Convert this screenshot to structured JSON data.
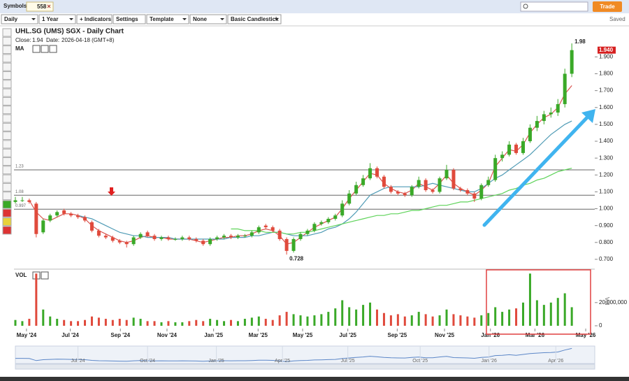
{
  "toolbar": {
    "symbols_label": "Symbols:",
    "symbol": "558",
    "controls": [
      "Daily",
      "1 Year",
      "+ Indicators",
      "Settings",
      "Template",
      "None",
      "Basic Candlestick"
    ],
    "trade": "Trade",
    "saved": "Saved"
  },
  "chart_data": {
    "type": "candlestick",
    "title": "UHL.SG (UMS) SGX - Daily Chart",
    "close_label": "Close:",
    "close": 1.94,
    "date_label": "Date:",
    "date": "2026-04-18 (GMT+8)",
    "indicator_label": "MA",
    "volume_label": "VOL",
    "volume_axis_label": "Vol",
    "xlim": [
      -0.5,
      83.3
    ],
    "xticks": [
      {
        "value": 1.6,
        "label": "May '24"
      },
      {
        "value": 7.9,
        "label": "Jul '24"
      },
      {
        "value": 15.1,
        "label": "Sep '24"
      },
      {
        "value": 21.8,
        "label": "Nov '24"
      },
      {
        "value": 28.5,
        "label": "Jan '25"
      },
      {
        "value": 34.9,
        "label": "Mar '25"
      },
      {
        "value": 41.3,
        "label": "May '25"
      },
      {
        "value": 47.8,
        "label": "Jul '25"
      },
      {
        "value": 54.9,
        "label": "Sep '25"
      },
      {
        "value": 61.7,
        "label": "Nov '25"
      },
      {
        "value": 68.3,
        "label": "Jan '26"
      },
      {
        "value": 74.7,
        "label": "Mar '26"
      },
      {
        "value": 82.0,
        "label": "May '26"
      }
    ],
    "navigator_ticks": [
      {
        "value": 9.0,
        "label": "Jul '24"
      },
      {
        "value": 19.0,
        "label": "Oct '24"
      },
      {
        "value": 28.9,
        "label": "Jan '25"
      },
      {
        "value": 38.4,
        "label": "Apr '25"
      },
      {
        "value": 47.8,
        "label": "Jul '25"
      },
      {
        "value": 58.2,
        "label": "Oct '25"
      },
      {
        "value": 68.1,
        "label": "Jan '26"
      },
      {
        "value": 77.7,
        "label": "Apr '26"
      }
    ],
    "ylim": [
      0.65,
      2.03
    ],
    "yticks": [
      {
        "value": 0.7,
        "label": "0.700"
      },
      {
        "value": 0.8,
        "label": "0.800"
      },
      {
        "value": 0.9,
        "label": "0.900"
      },
      {
        "value": 1.0,
        "label": "1.000"
      },
      {
        "value": 1.1,
        "label": "1.100"
      },
      {
        "value": 1.2,
        "label": "1.200"
      },
      {
        "value": 1.3,
        "label": "1.300"
      },
      {
        "value": 1.4,
        "label": "1.400"
      },
      {
        "value": 1.5,
        "label": "1.500"
      },
      {
        "value": 1.6,
        "label": "1.600"
      },
      {
        "value": 1.7,
        "label": "1.700"
      },
      {
        "value": 1.8,
        "label": "1.800"
      },
      {
        "value": 1.9,
        "label": "1.900"
      }
    ],
    "hlines": [
      {
        "value": 1.23,
        "label": "1.23"
      },
      {
        "value": 1.08,
        "label": "1.08"
      },
      {
        "value": 0.997,
        "label": "0.997"
      }
    ],
    "last_price_label": "1.940",
    "high_label": "1.98",
    "low_label": "0.728",
    "up_color": "#3aa928",
    "down_color": "#e04a3c",
    "open": [
      1.04,
      1.05,
      1.05,
      1.03,
      0.86,
      0.93,
      0.96,
      0.99,
      0.97,
      0.96,
      0.95,
      0.92,
      0.87,
      0.84,
      0.83,
      0.81,
      0.8,
      0.79,
      0.83,
      0.86,
      0.84,
      0.82,
      0.83,
      0.82,
      0.82,
      0.83,
      0.82,
      0.81,
      0.79,
      0.82,
      0.83,
      0.84,
      0.83,
      0.84,
      0.84,
      0.86,
      0.9,
      0.89,
      0.87,
      0.82,
      0.75,
      0.82,
      0.85,
      0.87,
      0.91,
      0.92,
      0.94,
      0.96,
      1.03,
      1.09,
      1.14,
      1.18,
      1.24,
      1.19,
      1.13,
      1.1,
      1.09,
      1.08,
      1.13,
      1.17,
      1.11,
      1.1,
      1.18,
      1.23,
      1.12,
      1.11,
      1.09,
      1.06,
      1.14,
      1.17,
      1.3,
      1.32,
      1.38,
      1.33,
      1.4,
      1.48,
      1.52,
      1.56,
      1.57,
      1.62,
      1.8
    ],
    "high": [
      1.07,
      1.07,
      1.06,
      1.04,
      0.94,
      0.97,
      0.99,
      1.0,
      0.98,
      0.97,
      0.96,
      0.93,
      0.88,
      0.85,
      0.84,
      0.82,
      0.81,
      0.84,
      0.86,
      0.87,
      0.85,
      0.84,
      0.84,
      0.83,
      0.84,
      0.84,
      0.83,
      0.82,
      0.83,
      0.84,
      0.85,
      0.85,
      0.85,
      0.85,
      0.87,
      0.9,
      0.91,
      0.9,
      0.88,
      0.83,
      0.83,
      0.86,
      0.88,
      0.92,
      0.93,
      0.95,
      0.97,
      1.05,
      1.11,
      1.16,
      1.2,
      1.27,
      1.25,
      1.2,
      1.14,
      1.11,
      1.1,
      1.14,
      1.19,
      1.18,
      1.12,
      1.19,
      1.26,
      1.24,
      1.13,
      1.12,
      1.1,
      1.15,
      1.19,
      1.32,
      1.34,
      1.4,
      1.39,
      1.42,
      1.5,
      1.55,
      1.58,
      1.6,
      1.65,
      1.83,
      1.98
    ],
    "low": [
      1.03,
      1.04,
      1.03,
      0.83,
      0.85,
      0.92,
      0.95,
      0.96,
      0.95,
      0.94,
      0.92,
      0.86,
      0.83,
      0.82,
      0.8,
      0.79,
      0.77,
      0.78,
      0.82,
      0.83,
      0.81,
      0.81,
      0.81,
      0.81,
      0.81,
      0.81,
      0.8,
      0.78,
      0.78,
      0.81,
      0.82,
      0.82,
      0.82,
      0.83,
      0.83,
      0.85,
      0.88,
      0.86,
      0.81,
      0.728,
      0.74,
      0.81,
      0.84,
      0.86,
      0.9,
      0.91,
      0.93,
      0.95,
      1.02,
      1.08,
      1.13,
      1.17,
      1.18,
      1.12,
      1.09,
      1.08,
      1.07,
      1.07,
      1.12,
      1.1,
      1.09,
      1.09,
      1.17,
      1.11,
      1.1,
      1.08,
      1.04,
      1.05,
      1.13,
      1.16,
      1.28,
      1.31,
      1.32,
      1.32,
      1.39,
      1.46,
      1.5,
      1.54,
      1.55,
      1.6,
      1.78
    ],
    "close_values": [
      1.05,
      1.05,
      1.04,
      0.85,
      0.93,
      0.96,
      0.98,
      0.97,
      0.96,
      0.95,
      0.93,
      0.87,
      0.84,
      0.83,
      0.81,
      0.8,
      0.79,
      0.83,
      0.85,
      0.84,
      0.82,
      0.83,
      0.82,
      0.82,
      0.83,
      0.82,
      0.81,
      0.79,
      0.82,
      0.83,
      0.84,
      0.83,
      0.84,
      0.84,
      0.86,
      0.89,
      0.89,
      0.87,
      0.82,
      0.75,
      0.82,
      0.85,
      0.87,
      0.91,
      0.92,
      0.94,
      0.96,
      1.03,
      1.09,
      1.14,
      1.18,
      1.24,
      1.19,
      1.13,
      1.1,
      1.09,
      1.08,
      1.13,
      1.17,
      1.11,
      1.1,
      1.18,
      1.23,
      1.12,
      1.11,
      1.09,
      1.06,
      1.14,
      1.17,
      1.3,
      1.32,
      1.38,
      1.33,
      1.4,
      1.48,
      1.52,
      1.56,
      1.57,
      1.62,
      1.8,
      1.94
    ],
    "ma_series": [
      {
        "color": "#d9534f",
        "values": [
          null,
          null,
          1.05,
          0.98,
          0.94,
          0.93,
          0.95,
          0.97,
          0.97,
          0.96,
          0.94,
          0.9,
          0.87,
          0.85,
          0.83,
          0.81,
          0.8,
          0.81,
          0.83,
          0.84,
          0.83,
          0.83,
          0.82,
          0.82,
          0.82,
          0.82,
          0.81,
          0.8,
          0.81,
          0.82,
          0.83,
          0.83,
          0.84,
          0.84,
          0.85,
          0.87,
          0.88,
          0.87,
          0.84,
          0.79,
          0.8,
          0.83,
          0.86,
          0.89,
          0.91,
          0.93,
          0.95,
          1.0,
          1.06,
          1.11,
          1.16,
          1.21,
          1.2,
          1.15,
          1.12,
          1.1,
          1.09,
          1.11,
          1.15,
          1.13,
          1.11,
          1.15,
          1.2,
          1.15,
          1.12,
          1.1,
          1.08,
          1.11,
          1.15,
          1.25,
          1.3,
          1.35,
          1.34,
          1.38,
          1.45,
          1.5,
          1.54,
          1.56,
          1.6,
          1.68,
          1.73
        ]
      },
      {
        "color": "#4f9bb5",
        "values": [
          null,
          null,
          null,
          null,
          null,
          null,
          null,
          null,
          null,
          0.96,
          0.95,
          0.94,
          0.92,
          0.9,
          0.88,
          0.86,
          0.85,
          0.84,
          0.84,
          0.83,
          0.83,
          0.83,
          0.83,
          0.82,
          0.82,
          0.82,
          0.82,
          0.82,
          0.82,
          0.82,
          0.82,
          0.83,
          0.83,
          0.83,
          0.84,
          0.84,
          0.85,
          0.86,
          0.86,
          0.85,
          0.84,
          0.84,
          0.84,
          0.85,
          0.86,
          0.88,
          0.89,
          0.91,
          0.94,
          0.98,
          1.03,
          1.08,
          1.1,
          1.12,
          1.13,
          1.13,
          1.13,
          1.13,
          1.13,
          1.14,
          1.15,
          1.14,
          1.13,
          1.12,
          1.11,
          1.1,
          1.1,
          1.12,
          1.15,
          1.18,
          1.2,
          1.23,
          1.26,
          1.29,
          1.32,
          1.36,
          1.4,
          1.44,
          1.47,
          1.5,
          1.52
        ]
      },
      {
        "color": "#5fd35a",
        "values": [
          null,
          null,
          null,
          null,
          null,
          null,
          null,
          null,
          null,
          null,
          null,
          null,
          null,
          null,
          null,
          null,
          null,
          null,
          null,
          null,
          null,
          null,
          null,
          null,
          null,
          null,
          null,
          null,
          null,
          null,
          null,
          0.88,
          0.88,
          0.87,
          0.87,
          0.87,
          0.86,
          0.86,
          0.86,
          0.85,
          0.85,
          0.86,
          0.86,
          0.87,
          0.88,
          0.89,
          0.9,
          0.91,
          0.92,
          0.93,
          0.94,
          0.95,
          0.96,
          0.96,
          0.97,
          0.97,
          0.98,
          0.99,
          0.99,
          1.0,
          1.01,
          1.02,
          1.02,
          1.03,
          1.04,
          1.04,
          1.05,
          1.06,
          1.07,
          1.08,
          1.09,
          1.11,
          1.12,
          1.14,
          1.15,
          1.17,
          1.18,
          1.2,
          1.22,
          1.23,
          1.24
        ]
      }
    ],
    "vol_ylim": [
      0,
      47000000
    ],
    "vol_yticks": [
      0,
      {
        "value": 20000000,
        "label": "20,000,000"
      }
    ],
    "volume": [
      5000000,
      4000000,
      6000000,
      45000000,
      14000000,
      8000000,
      6000000,
      5000000,
      4000000,
      4000000,
      5000000,
      8000000,
      7000000,
      6000000,
      5000000,
      6000000,
      5000000,
      7000000,
      6000000,
      4000000,
      4000000,
      3000000,
      4000000,
      3000000,
      3000000,
      4000000,
      5000000,
      4000000,
      6000000,
      5000000,
      4000000,
      5000000,
      4000000,
      6000000,
      7000000,
      8000000,
      6000000,
      5000000,
      9000000,
      12000000,
      10000000,
      9000000,
      8000000,
      9000000,
      10000000,
      12000000,
      15000000,
      22000000,
      16000000,
      14000000,
      18000000,
      20000000,
      14000000,
      11000000,
      9000000,
      10000000,
      8000000,
      9000000,
      12000000,
      10000000,
      8000000,
      9000000,
      14000000,
      10000000,
      9000000,
      8000000,
      7000000,
      9000000,
      11000000,
      16000000,
      12000000,
      14000000,
      15000000,
      20000000,
      45000000,
      22000000,
      18000000,
      20000000,
      24000000,
      28000000,
      16000000
    ]
  }
}
